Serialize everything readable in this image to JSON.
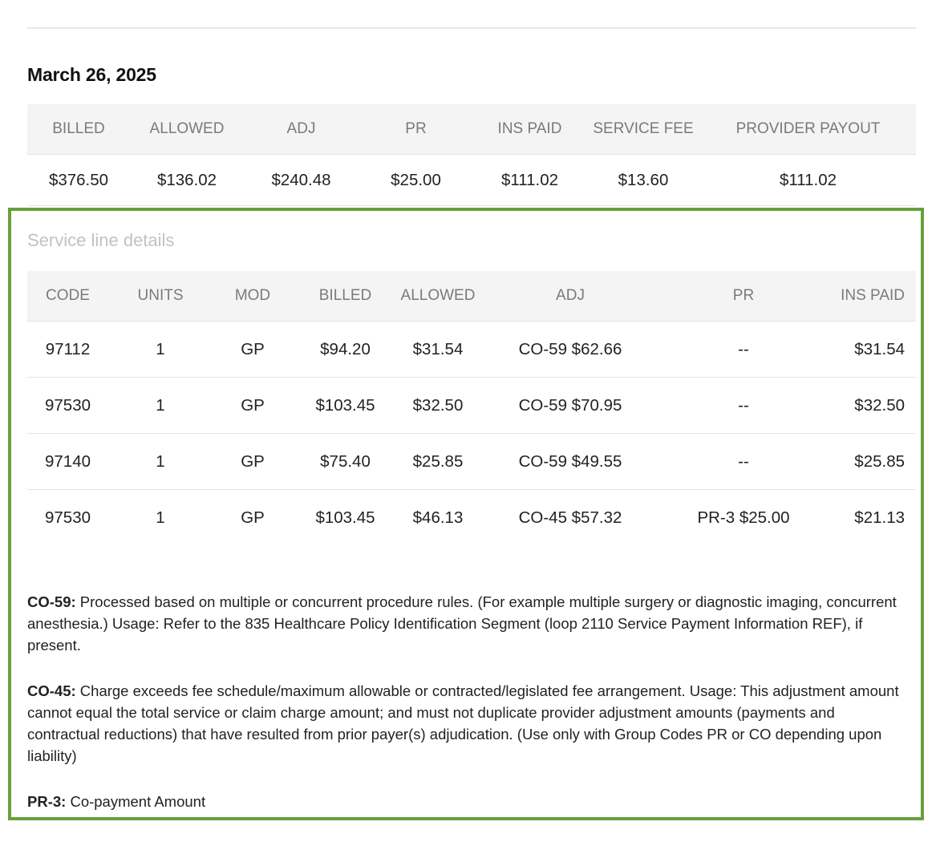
{
  "date": "March 26, 2025",
  "summary": {
    "headers": [
      "BILLED",
      "ALLOWED",
      "ADJ",
      "PR",
      "INS PAID",
      "SERVICE FEE",
      "PROVIDER PAYOUT"
    ],
    "values": [
      "$376.50",
      "$136.02",
      "$240.48",
      "$25.00",
      "$111.02",
      "$13.60",
      "$111.02"
    ]
  },
  "details": {
    "title": "Service line details",
    "headers": [
      "CODE",
      "UNITS",
      "MOD",
      "BILLED",
      "ALLOWED",
      "ADJ",
      "PR",
      "INS PAID"
    ],
    "rows": [
      [
        "97112",
        "1",
        "GP",
        "$94.20",
        "$31.54",
        "CO-59 $62.66",
        "--",
        "$31.54"
      ],
      [
        "97530",
        "1",
        "GP",
        "$103.45",
        "$32.50",
        "CO-59 $70.95",
        "--",
        "$32.50"
      ],
      [
        "97140",
        "1",
        "GP",
        "$75.40",
        "$25.85",
        "CO-59 $49.55",
        "--",
        "$25.85"
      ],
      [
        "97530",
        "1",
        "GP",
        "$103.45",
        "$46.13",
        "CO-45 $57.32",
        "PR-3 $25.00",
        "$21.13"
      ]
    ]
  },
  "notes": [
    {
      "code": "CO-59:",
      "text": "Processed based on multiple or concurrent procedure rules. (For example multiple surgery or diagnostic imaging, concurrent anesthesia.) Usage: Refer to the 835 Healthcare Policy Identification Segment (loop 2110 Service Payment Information REF), if present."
    },
    {
      "code": "CO-45:",
      "text": "Charge exceeds fee schedule/maximum allowable or contracted/legislated fee arrangement. Usage: This adjustment amount cannot equal the total service or claim charge amount; and must not duplicate provider adjustment amounts (payments and contractual reductions) that have resulted from prior payer(s) adjudication. (Use only with Group Codes PR or CO depending upon liability)"
    },
    {
      "code": "PR-3:",
      "text": "Co-payment Amount"
    }
  ],
  "colors": {
    "highlight_border": "#68a039",
    "header_bg": "#f4f4f5",
    "header_text": "#7a7a7a"
  }
}
